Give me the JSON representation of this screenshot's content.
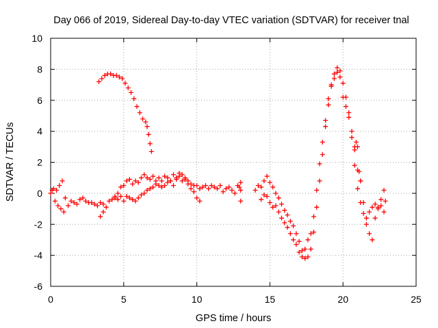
{
  "chart_data": {
    "type": "scatter",
    "title": "Day 066 of 2019, Sidereal Day-to-day VTEC variation (SDTVAR) for receiver tnal",
    "xlabel": "GPS time / hours",
    "ylabel": "SDTVAR / TECUs",
    "xlim": [
      0,
      25
    ],
    "ylim": [
      -6,
      10
    ],
    "xticks": [
      0,
      5,
      10,
      15,
      20,
      25
    ],
    "yticks": [
      -6,
      -4,
      -2,
      0,
      2,
      4,
      6,
      8,
      10
    ],
    "xtick_labels": [
      "0",
      "5",
      "10",
      "15",
      "20",
      "25"
    ],
    "ytick_labels": [
      "-6",
      "-4",
      "-2",
      "0",
      "2",
      "4",
      "6",
      "8",
      "10"
    ],
    "grid": true,
    "marker": "+",
    "color": "#ff0000",
    "series": [
      {
        "name": "SDTVAR",
        "points": [
          [
            0.0,
            0.0
          ],
          [
            0.1,
            0.2
          ],
          [
            0.2,
            0.3
          ],
          [
            0.3,
            -0.5
          ],
          [
            0.4,
            0.2
          ],
          [
            0.5,
            -0.8
          ],
          [
            0.6,
            0.5
          ],
          [
            0.7,
            -1.0
          ],
          [
            0.8,
            0.8
          ],
          [
            0.9,
            -1.2
          ],
          [
            1.0,
            -0.3
          ],
          [
            1.2,
            -0.8
          ],
          [
            1.4,
            -0.5
          ],
          [
            1.6,
            -0.6
          ],
          [
            1.8,
            -0.7
          ],
          [
            2.0,
            -0.4
          ],
          [
            2.2,
            -0.3
          ],
          [
            2.4,
            -0.5
          ],
          [
            2.6,
            -0.6
          ],
          [
            2.8,
            -0.6
          ],
          [
            3.0,
            -0.7
          ],
          [
            3.2,
            -0.8
          ],
          [
            3.4,
            -0.6
          ],
          [
            3.6,
            -0.7
          ],
          [
            3.4,
            -1.5
          ],
          [
            3.6,
            -1.2
          ],
          [
            3.8,
            -0.9
          ],
          [
            4.0,
            -0.5
          ],
          [
            4.2,
            -0.4
          ],
          [
            4.4,
            -0.3
          ],
          [
            4.6,
            -0.4
          ],
          [
            4.8,
            -0.2
          ],
          [
            5.0,
            -0.5
          ],
          [
            5.2,
            -0.2
          ],
          [
            5.4,
            -0.3
          ],
          [
            5.6,
            -0.4
          ],
          [
            5.8,
            -0.5
          ],
          [
            6.0,
            -0.3
          ],
          [
            6.2,
            -0.1
          ],
          [
            6.4,
            0.0
          ],
          [
            6.6,
            0.2
          ],
          [
            6.8,
            0.3
          ],
          [
            7.0,
            0.4
          ],
          [
            7.2,
            0.6
          ],
          [
            7.4,
            0.5
          ],
          [
            7.6,
            0.4
          ],
          [
            7.8,
            0.5
          ],
          [
            8.0,
            0.7
          ],
          [
            8.2,
            0.8
          ],
          [
            8.4,
            0.5
          ],
          [
            8.6,
            0.9
          ],
          [
            8.8,
            1.1
          ],
          [
            9.0,
            0.8
          ],
          [
            9.2,
            0.9
          ],
          [
            9.4,
            0.6
          ],
          [
            9.6,
            0.3
          ],
          [
            9.8,
            0.1
          ],
          [
            10.0,
            -0.3
          ],
          [
            10.2,
            -0.5
          ],
          [
            4.4,
            -0.2
          ],
          [
            4.6,
            0.0
          ],
          [
            4.8,
            0.4
          ],
          [
            5.0,
            0.5
          ],
          [
            5.2,
            0.8
          ],
          [
            5.4,
            0.9
          ],
          [
            5.6,
            0.6
          ],
          [
            5.8,
            0.8
          ],
          [
            6.0,
            0.7
          ],
          [
            6.2,
            1.0
          ],
          [
            6.4,
            1.2
          ],
          [
            6.6,
            1.0
          ],
          [
            6.8,
            0.9
          ],
          [
            7.0,
            1.1
          ],
          [
            7.2,
            0.8
          ],
          [
            7.4,
            1.0
          ],
          [
            7.6,
            0.8
          ],
          [
            7.8,
            1.1
          ],
          [
            8.0,
            1.0
          ],
          [
            8.2,
            0.8
          ],
          [
            8.4,
            1.2
          ],
          [
            8.6,
            1.0
          ],
          [
            8.8,
            1.3
          ],
          [
            9.0,
            1.2
          ],
          [
            9.2,
            1.0
          ],
          [
            9.4,
            0.8
          ],
          [
            9.6,
            0.6
          ],
          [
            9.8,
            0.5
          ],
          [
            10.0,
            0.5
          ],
          [
            10.2,
            0.3
          ],
          [
            10.4,
            0.4
          ],
          [
            10.6,
            0.5
          ],
          [
            10.8,
            0.3
          ],
          [
            11.0,
            0.5
          ],
          [
            11.2,
            0.4
          ],
          [
            11.4,
            0.3
          ],
          [
            11.6,
            0.5
          ],
          [
            11.8,
            0.1
          ],
          [
            12.0,
            0.3
          ],
          [
            12.2,
            0.4
          ],
          [
            12.4,
            0.2
          ],
          [
            12.6,
            0.0
          ],
          [
            12.8,
            0.5
          ],
          [
            12.9,
            0.4
          ],
          [
            13.0,
            -0.5
          ],
          [
            13.0,
            0.7
          ],
          [
            13.0,
            0.2
          ],
          [
            3.3,
            7.2
          ],
          [
            3.5,
            7.4
          ],
          [
            3.7,
            7.6
          ],
          [
            3.9,
            7.7
          ],
          [
            4.1,
            7.7
          ],
          [
            4.3,
            7.6
          ],
          [
            4.5,
            7.6
          ],
          [
            4.7,
            7.5
          ],
          [
            4.9,
            7.4
          ],
          [
            5.1,
            7.1
          ],
          [
            5.3,
            6.8
          ],
          [
            5.5,
            6.5
          ],
          [
            5.7,
            6.1
          ],
          [
            5.9,
            5.6
          ],
          [
            6.1,
            5.2
          ],
          [
            6.3,
            4.8
          ],
          [
            6.5,
            4.6
          ],
          [
            6.6,
            4.3
          ],
          [
            6.7,
            3.8
          ],
          [
            6.8,
            3.2
          ],
          [
            6.9,
            2.7
          ],
          [
            14.0,
            0.2
          ],
          [
            14.2,
            0.5
          ],
          [
            14.4,
            0.4
          ],
          [
            14.6,
            0.8
          ],
          [
            14.8,
            1.1
          ],
          [
            15.0,
            0.7
          ],
          [
            15.2,
            0.4
          ],
          [
            15.4,
            0.0
          ],
          [
            15.6,
            -0.3
          ],
          [
            15.8,
            -0.7
          ],
          [
            16.0,
            -1.1
          ],
          [
            16.2,
            -1.4
          ],
          [
            16.4,
            -1.8
          ],
          [
            16.6,
            -2.1
          ],
          [
            16.8,
            -2.6
          ],
          [
            17.0,
            -3.1
          ],
          [
            17.2,
            -3.7
          ],
          [
            17.4,
            -4.2
          ],
          [
            17.6,
            -4.1
          ],
          [
            17.8,
            -3.6
          ],
          [
            18.0,
            -2.5
          ],
          [
            18.2,
            -0.9
          ],
          [
            18.4,
            0.8
          ],
          [
            18.6,
            2.5
          ],
          [
            18.8,
            4.3
          ],
          [
            19.0,
            5.7
          ],
          [
            19.2,
            6.9
          ],
          [
            19.4,
            7.7
          ],
          [
            19.6,
            8.1
          ],
          [
            19.8,
            7.9
          ],
          [
            20.0,
            7.1
          ],
          [
            20.2,
            6.2
          ],
          [
            20.4,
            4.9
          ],
          [
            20.6,
            3.6
          ],
          [
            20.8,
            1.8
          ],
          [
            21.0,
            0.3
          ],
          [
            21.2,
            -0.6
          ],
          [
            21.4,
            -1.3
          ],
          [
            21.6,
            -1.6
          ],
          [
            21.8,
            -1.2
          ],
          [
            22.0,
            -0.9
          ],
          [
            22.2,
            -0.7
          ],
          [
            22.4,
            -0.9
          ],
          [
            22.6,
            -0.4
          ],
          [
            22.8,
            0.2
          ],
          [
            14.4,
            -0.4
          ],
          [
            14.6,
            -0.1
          ],
          [
            14.8,
            -0.2
          ],
          [
            15.0,
            -0.6
          ],
          [
            15.2,
            -0.9
          ],
          [
            15.4,
            -0.8
          ],
          [
            15.6,
            -1.2
          ],
          [
            15.8,
            -1.6
          ],
          [
            16.0,
            -1.9
          ],
          [
            16.2,
            -2.2
          ],
          [
            16.4,
            -2.6
          ],
          [
            16.6,
            -3.0
          ],
          [
            16.8,
            -3.3
          ],
          [
            17.0,
            -3.8
          ],
          [
            17.2,
            -4.1
          ],
          [
            17.4,
            -3.6
          ],
          [
            17.6,
            -3.0
          ],
          [
            17.8,
            -2.6
          ],
          [
            18.0,
            -1.5
          ],
          [
            18.2,
            0.2
          ],
          [
            18.4,
            1.9
          ],
          [
            18.6,
            3.3
          ],
          [
            18.8,
            4.7
          ],
          [
            19.0,
            6.1
          ],
          [
            19.2,
            7.0
          ],
          [
            19.4,
            7.4
          ],
          [
            19.6,
            7.8
          ],
          [
            19.8,
            7.5
          ],
          [
            20.0,
            6.2
          ],
          [
            20.2,
            5.6
          ],
          [
            20.4,
            5.2
          ],
          [
            20.6,
            4.0
          ],
          [
            20.8,
            3.0
          ],
          [
            21.0,
            1.5
          ],
          [
            21.2,
            0.8
          ],
          [
            21.4,
            -0.6
          ],
          [
            21.6,
            -2.0
          ],
          [
            21.8,
            -2.6
          ],
          [
            22.0,
            -3.0
          ],
          [
            22.2,
            -1.6
          ],
          [
            22.4,
            -1.0
          ],
          [
            22.6,
            -0.8
          ],
          [
            22.8,
            -1.2
          ],
          [
            22.9,
            -0.5
          ],
          [
            20.8,
            2.8
          ],
          [
            20.9,
            3.3
          ],
          [
            21.0,
            3.0
          ],
          [
            21.1,
            1.4
          ],
          [
            21.2,
            0.8
          ]
        ]
      }
    ]
  }
}
